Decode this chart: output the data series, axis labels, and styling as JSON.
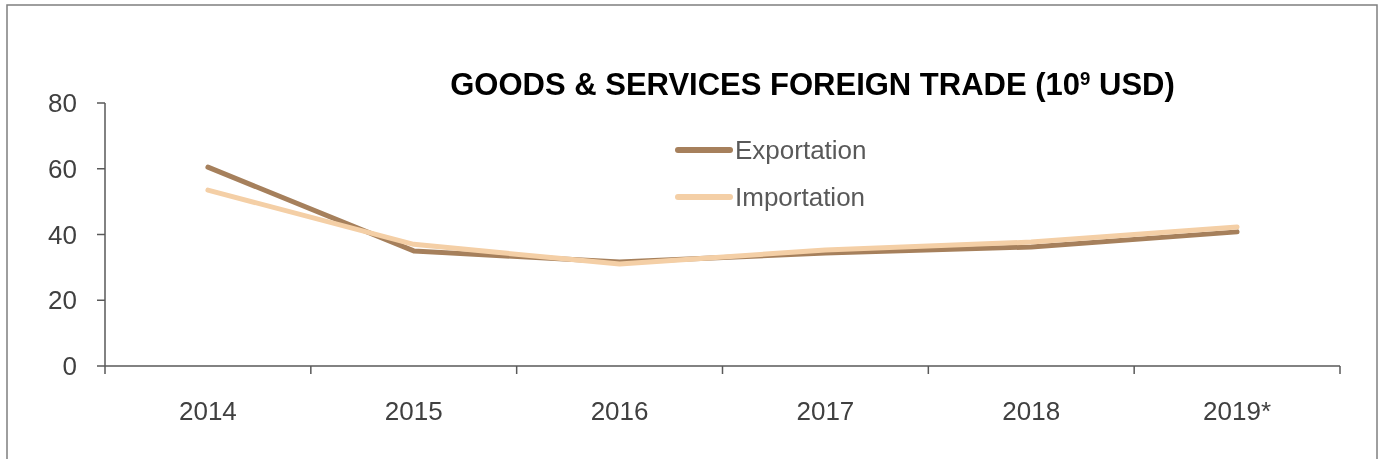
{
  "chart_data": {
    "type": "line",
    "title": "GOODS & SERVICES FOREIGN TRADE (10$^{9}$ USD)",
    "categories": [
      "2014",
      "2015",
      "2016",
      "2017",
      "2018",
      "2019*"
    ],
    "series": [
      {
        "name": "Exportation",
        "color": "#a6805c",
        "values": [
          60.5,
          35,
          31.6,
          34.4,
          36.2,
          40.8
        ]
      },
      {
        "name": "Importation",
        "color": "#f4cfa6",
        "values": [
          53.5,
          37,
          31,
          35.3,
          37.7,
          42.3
        ]
      }
    ],
    "ylim": [
      0,
      80
    ],
    "yticks": [
      0,
      20,
      40,
      60,
      80
    ],
    "grid": false,
    "legend": "top",
    "marker": "none",
    "line_style": "solid"
  }
}
